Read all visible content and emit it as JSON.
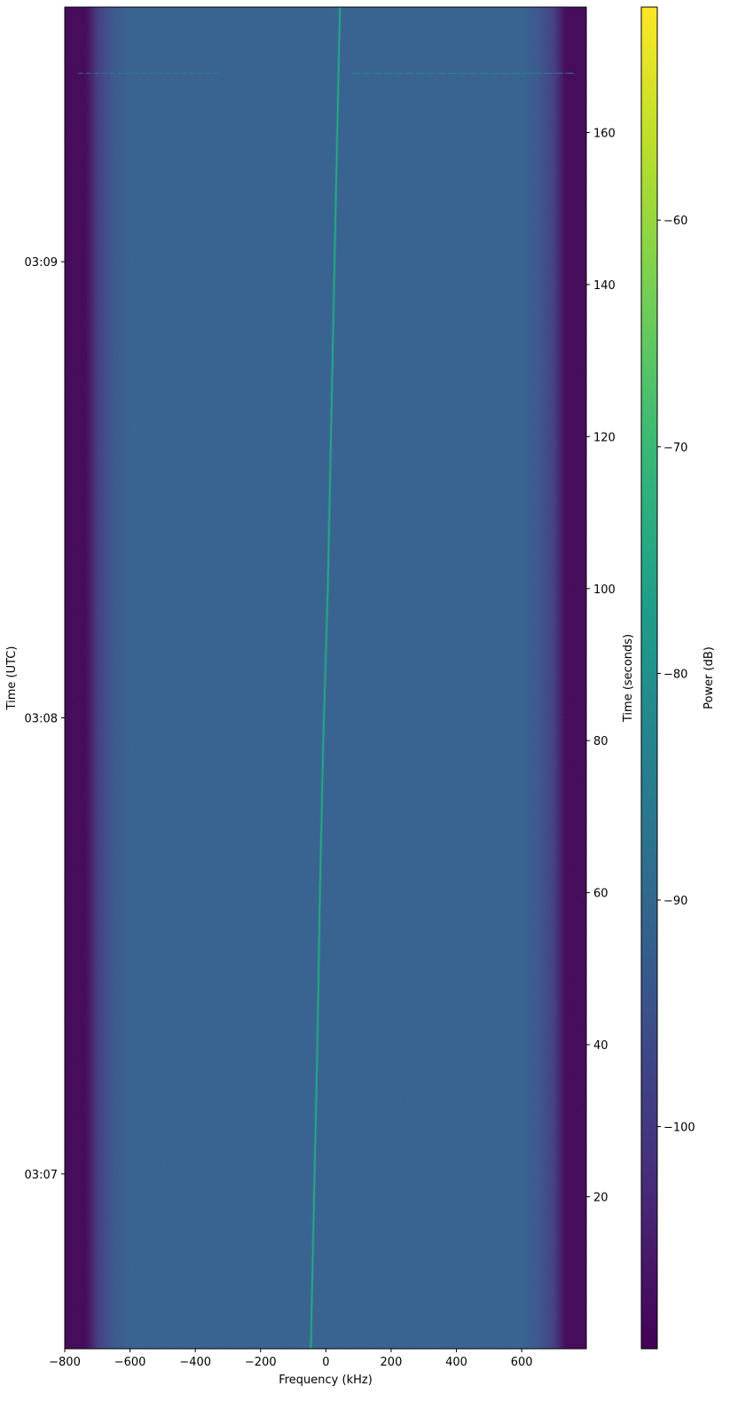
{
  "chart_data": {
    "type": "heatmap",
    "title": "",
    "xlabel": "Frequency (kHz)",
    "ylabel_left": "Time (UTC)",
    "ylabel_right": "Time (seconds)",
    "colorbar_label": "Power (dB)",
    "colormap": "viridis",
    "xlim": [
      -800,
      798
    ],
    "ylim": [
      0,
      176.5
    ],
    "clim": [
      -109.8,
      -50.6
    ],
    "x_ticks": [
      -800,
      -600,
      -400,
      -200,
      0,
      200,
      400,
      600
    ],
    "x_tick_labels": [
      "−800",
      "−600",
      "−400",
      "−200",
      "0",
      "200",
      "400",
      "600"
    ],
    "right_ticks": [
      20,
      40,
      60,
      80,
      100,
      120,
      140,
      160
    ],
    "right_tick_labels": [
      "20",
      "40",
      "60",
      "80",
      "100",
      "120",
      "140",
      "160"
    ],
    "left_ticks_seconds": [
      23,
      83,
      143
    ],
    "left_tick_labels": [
      "03:07",
      "03:08",
      "03:09"
    ],
    "colorbar_ticks": [
      -60,
      -70,
      -80,
      -90,
      -100
    ],
    "colorbar_tick_labels": [
      "−60",
      "−70",
      "−80",
      "−90",
      "−100"
    ],
    "noise_floor_profile": {
      "freq_khz": [
        -800,
        -735,
        -700,
        -650,
        -600,
        600,
        650,
        700,
        735,
        798
      ],
      "power_db": [
        -109.5,
        -109.5,
        -100,
        -94,
        -92,
        -92,
        -94,
        -100,
        -109.5,
        -109.5
      ]
    },
    "signal_track": {
      "time_s": [
        0,
        40,
        60,
        80,
        100,
        140,
        176.5
      ],
      "freq_khz": [
        -46,
        -26,
        -18,
        -8,
        6,
        25,
        43
      ],
      "power_db": -74
    },
    "burst": {
      "time_s": 167.8,
      "freq_khz": [
        -760,
        760
      ],
      "power_db": -80
    }
  }
}
